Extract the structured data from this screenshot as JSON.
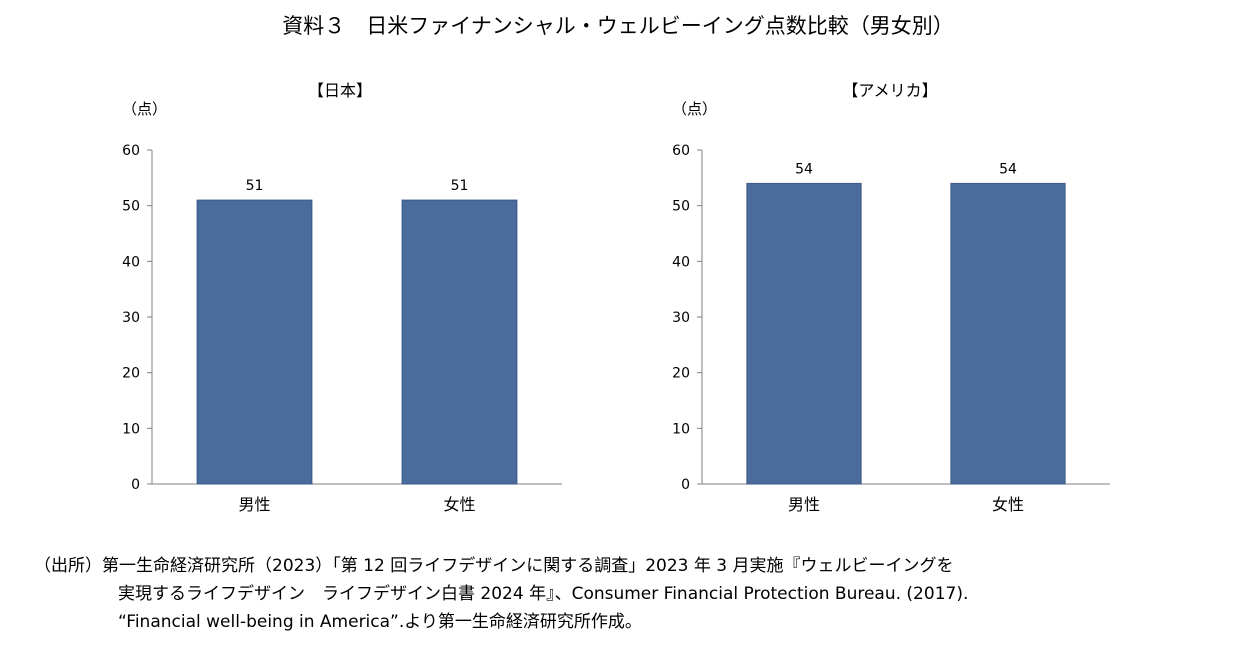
{
  "title": "資料３　日米ファイナンシャル・ウェルビーイング点数比較（男女別）",
  "chart_data": [
    {
      "type": "bar",
      "title": "【日本】",
      "ylabel": "（点）",
      "categories": [
        "男性",
        "女性"
      ],
      "values": [
        51,
        51
      ],
      "data_labels": [
        "51",
        "51"
      ],
      "ylim": [
        0,
        60
      ],
      "yticks": [
        "0",
        "10",
        "20",
        "30",
        "40",
        "50",
        "60"
      ],
      "bar_color": "#4a6b9b",
      "grid": false,
      "legend": "none"
    },
    {
      "type": "bar",
      "title": "【アメリカ】",
      "ylabel": "（点）",
      "categories": [
        "男性",
        "女性"
      ],
      "values": [
        54,
        54
      ],
      "data_labels": [
        "54",
        "54"
      ],
      "ylim": [
        0,
        60
      ],
      "yticks": [
        "0",
        "10",
        "20",
        "30",
        "40",
        "50",
        "60"
      ],
      "bar_color": "#4a6b9b",
      "grid": false,
      "legend": "none"
    }
  ],
  "source": {
    "line1": "（出所）第一生命経済研究所（2023）「第 12 回ライフデザインに関する調査」2023 年 3 月実施『ウェルビーイングを",
    "line2": "実現するライフデザイン　ライフデザイン白書 2024 年』、Consumer Financial Protection Bureau. (2017).",
    "line3": "“Financial well-being in America”.より第一生命経済研究所作成。"
  }
}
